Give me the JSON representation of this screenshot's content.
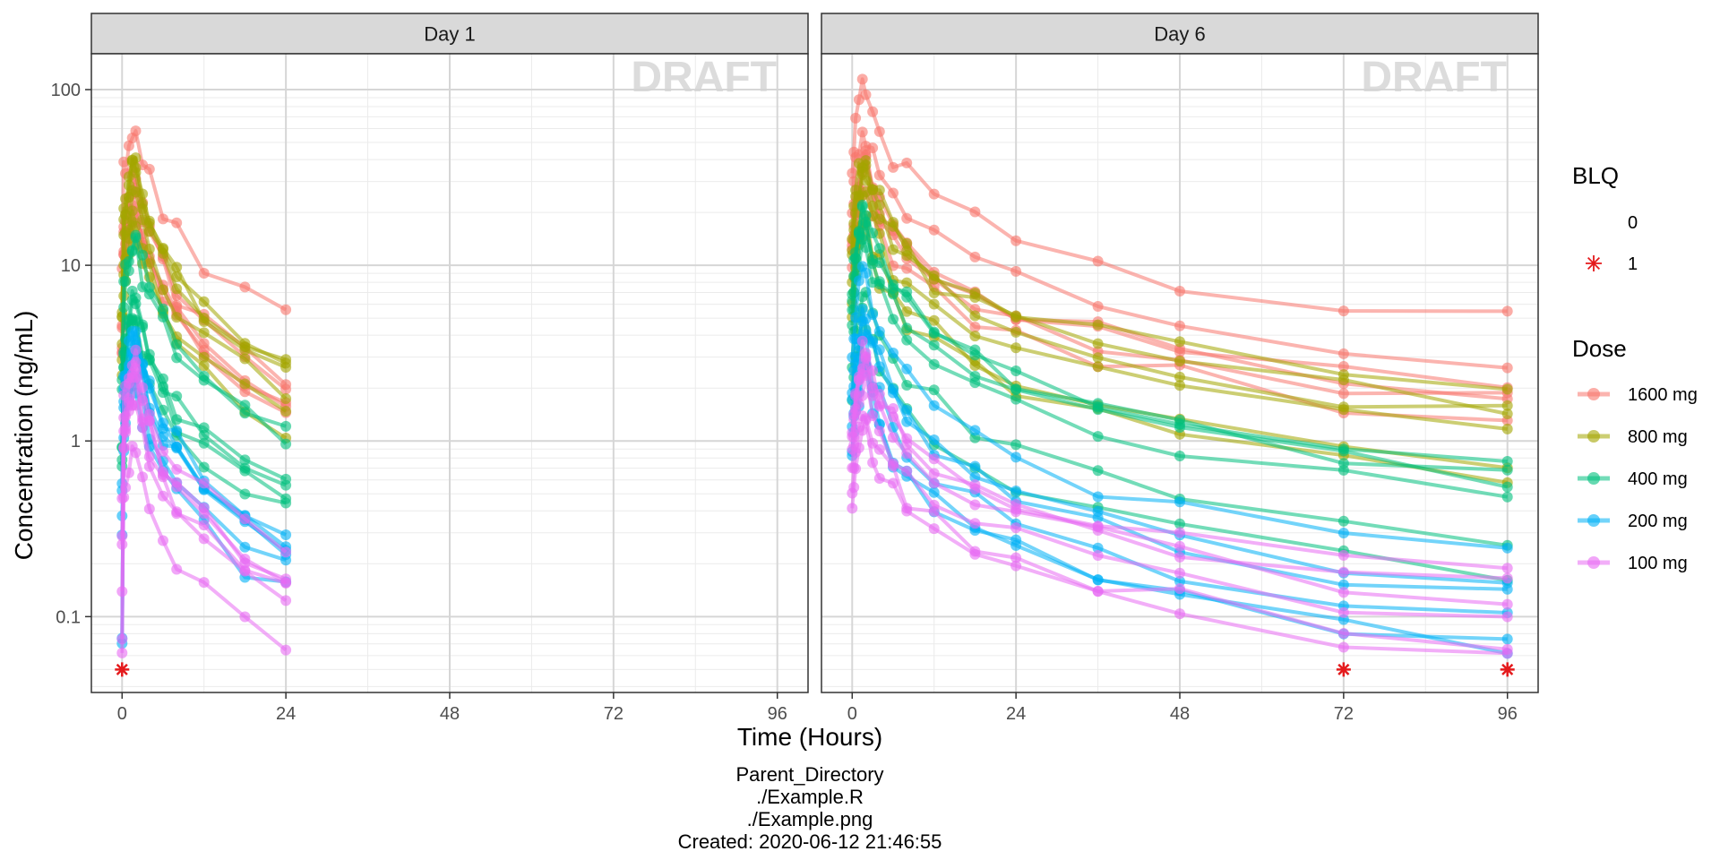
{
  "chart_data": {
    "type": "line",
    "title": "",
    "xlabel": "Time (Hours)",
    "ylabel": "Concentration (ng/mL)",
    "y_scale": "log10",
    "ylim": [
      0.037,
      160
    ],
    "xlim": [
      -4.5,
      100.5
    ],
    "x_ticks": [
      0,
      24,
      48,
      72,
      96
    ],
    "y_ticks": [
      0.1,
      1,
      10,
      100
    ],
    "y_tick_labels": [
      "0.1",
      "1",
      "10",
      "100"
    ],
    "watermark": "DRAFT",
    "grid": true,
    "legend_placement": "right",
    "panels": [
      {
        "label": "Day 1",
        "times": [
          0,
          0.25,
          0.5,
          1,
          1.5,
          2,
          3,
          4,
          6,
          8,
          12,
          18,
          24
        ]
      },
      {
        "label": "Day 6",
        "times": [
          0,
          0.25,
          0.5,
          1,
          1.5,
          2,
          3,
          4,
          6,
          8,
          12,
          18,
          24,
          36,
          48,
          72,
          96
        ]
      }
    ],
    "blq_legend": {
      "title": "BLQ",
      "entries": [
        {
          "label": "0"
        },
        {
          "label": "1",
          "marker": "asterisk",
          "color": "#E41A1C"
        }
      ]
    },
    "blq_value": 0.05,
    "series": [
      {
        "name": "1600 mg",
        "color": "#F8766D",
        "day1_peak": 40,
        "day6_peak": 45,
        "day1_tail": 3,
        "day6_tail": 2.2
      },
      {
        "name": "800 mg",
        "color": "#A3A500",
        "day1_peak": 18,
        "day6_peak": 20,
        "day1_tail": 1.4,
        "day6_tail": 0.9
      },
      {
        "name": "400 mg",
        "color": "#00BF7D",
        "day1_peak": 7,
        "day6_peak": 9,
        "day1_tail": 0.6,
        "day6_tail": 0.35
      },
      {
        "name": "200 mg",
        "color": "#00B0F6",
        "day1_peak": 4,
        "day6_peak": 4.5,
        "day1_tail": 0.3,
        "day6_tail": 0.12
      },
      {
        "name": "100 mg",
        "color": "#E76BF3",
        "day1_peak": 1.6,
        "day6_peak": 1.8,
        "day1_tail": 0.12,
        "day6_tail": 0.09
      }
    ],
    "dose_legend_title": "Dose"
  },
  "footer": {
    "line1": "Parent_Directory",
    "line2": "./Example.R",
    "line3": "./Example.png",
    "line4": "Created: 2020-06-12 21:46:55"
  }
}
